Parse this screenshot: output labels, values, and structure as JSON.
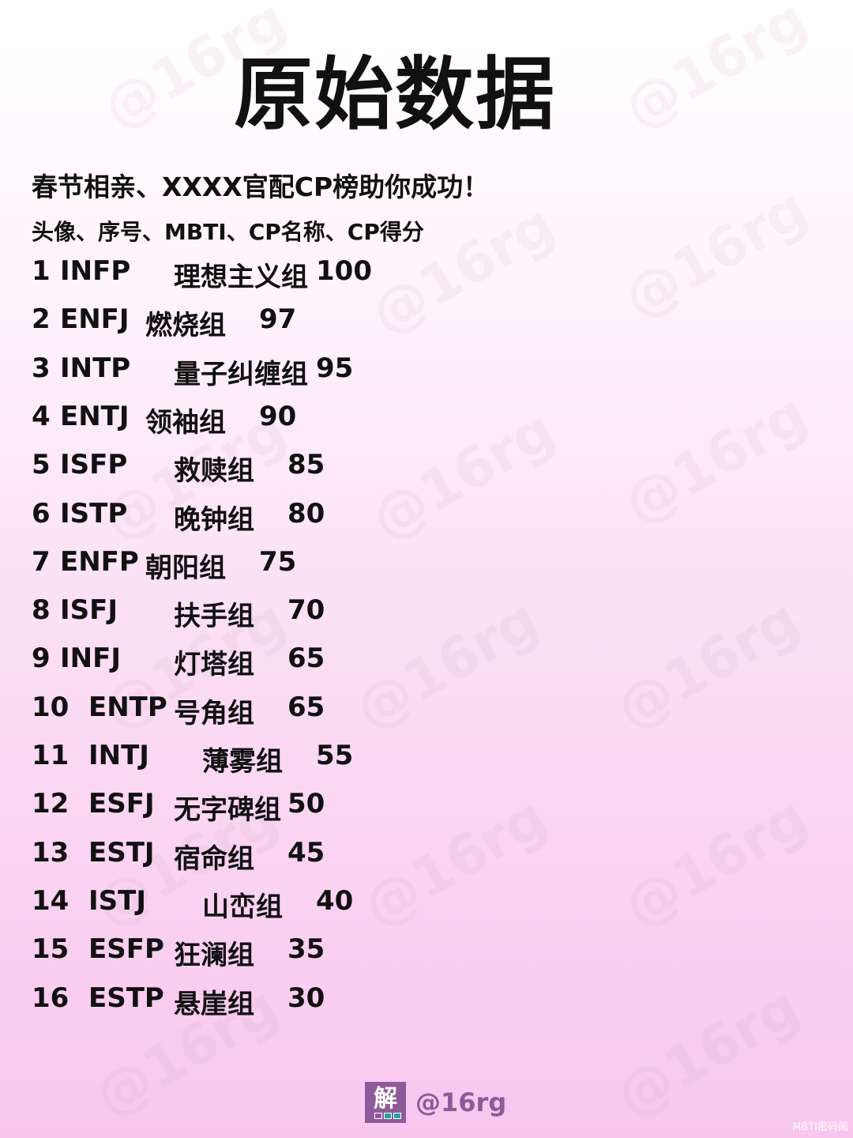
{
  "title": "原始数据",
  "subtitle": "春节相亲、XXXX官配CP榜助你成功！",
  "columns_line": "头像、序号、MBTI、CP名称、CP得分",
  "rows": [
    {
      "rank": "1",
      "mbti": "INFP",
      "cp": "理想主义组",
      "score": "100"
    },
    {
      "rank": "2",
      "mbti": "ENFJ",
      "cp": "燃烧组",
      "score": "97"
    },
    {
      "rank": "3",
      "mbti": "INTP",
      "cp": "量子纠缠组",
      "score": "95"
    },
    {
      "rank": "4",
      "mbti": "ENTJ",
      "cp": "领袖组",
      "score": "90"
    },
    {
      "rank": "5",
      "mbti": "ISFP",
      "cp": "救赎组",
      "score": "85"
    },
    {
      "rank": "6",
      "mbti": "ISTP",
      "cp": "晚钟组",
      "score": "80"
    },
    {
      "rank": "7",
      "mbti": "ENFP",
      "cp": "朝阳组",
      "score": "75"
    },
    {
      "rank": "8",
      "mbti": "ISFJ",
      "cp": "扶手组",
      "score": "70"
    },
    {
      "rank": "9",
      "mbti": "INFJ",
      "cp": "灯塔组",
      "score": "65"
    },
    {
      "rank": "10",
      "mbti": "ENTP",
      "cp": "号角组",
      "score": "65"
    },
    {
      "rank": "11",
      "mbti": "INTJ",
      "cp": "薄雾组",
      "score": "55"
    },
    {
      "rank": "12",
      "mbti": "ESFJ",
      "cp": "无字碑组",
      "score": "50"
    },
    {
      "rank": "13",
      "mbti": "ESTJ",
      "cp": "宿命组",
      "score": "45"
    },
    {
      "rank": "14",
      "mbti": "ISTJ",
      "cp": "山峦组",
      "score": "40"
    },
    {
      "rank": "15",
      "mbti": "ESFP",
      "cp": "狂澜组",
      "score": "35"
    },
    {
      "rank": "16",
      "mbti": "ESTP",
      "cp": "悬崖组",
      "score": "30"
    }
  ],
  "watermark": "@16rg",
  "footer": {
    "logo_char": "解",
    "handle": "@16rg",
    "corner": "MBTI密码阁"
  }
}
